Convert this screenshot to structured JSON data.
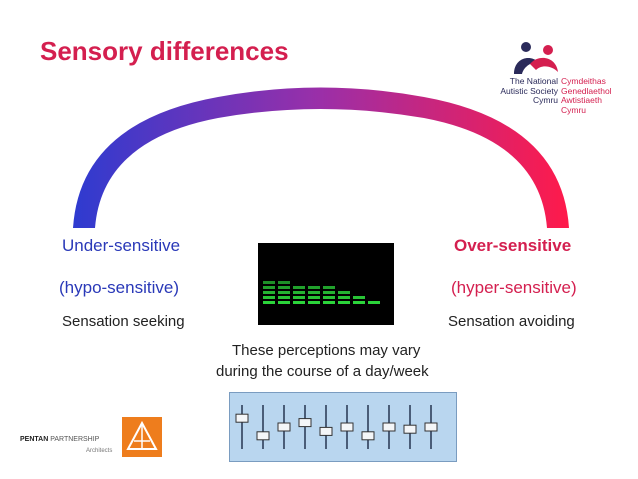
{
  "title": "Sensory differences",
  "left": {
    "label": "Under-sensitive",
    "sub": "(hypo-sensitive)",
    "desc": "Sensation seeking"
  },
  "right": {
    "label": "Over-sensitive",
    "sub": "(hyper-sensitive)",
    "desc": "Sensation avoiding"
  },
  "note": {
    "line1": "These perceptions may vary",
    "line2": "during the course of a day/week"
  },
  "logo_nas": {
    "en": [
      "The National",
      "Autistic Society",
      "Cymru"
    ],
    "cy": [
      "Cymdeithas",
      "Genedlaethol",
      "Awtistiaeth",
      "Cymru"
    ]
  },
  "logo_pentan": {
    "name_bold": "PENTAN",
    "name_rest": " PARTNERSHIP",
    "sub": "Architects"
  },
  "colors": {
    "title": "#d41f4f",
    "arc_start": "#2e3bd0",
    "arc_end": "#ff1a4a",
    "left_text": "#2a39b8",
    "right_text": "#d41f4f",
    "eq_bar": "#2bd43a",
    "pentan_orange": "#ee7d1d"
  },
  "equalizer_levels": [
    5,
    5,
    4,
    4,
    4,
    3,
    2,
    1
  ],
  "mixer_slider_levels": [
    0.7,
    0.3,
    0.5,
    0.6,
    0.4,
    0.5,
    0.3,
    0.5,
    0.45,
    0.5
  ]
}
